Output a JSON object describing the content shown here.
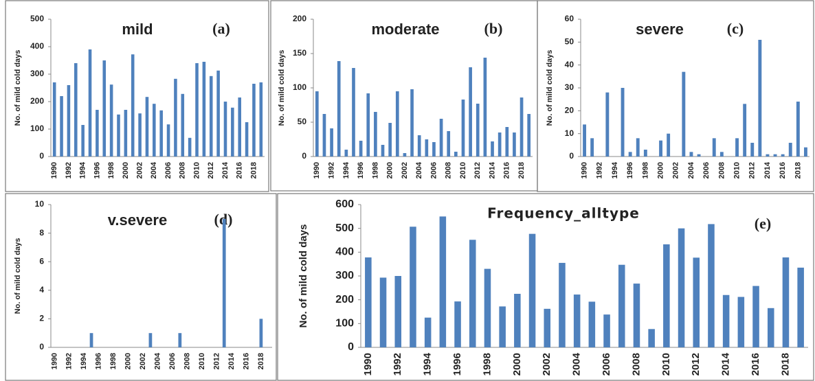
{
  "chart_data": [
    {
      "type": "bar",
      "title": "mild",
      "panel_label": "(a)",
      "y_label": "No. of mild cold days",
      "color": "#4f81bd",
      "categories": [
        "1990",
        null,
        "1992",
        null,
        "1994",
        null,
        "1996",
        null,
        "1998",
        null,
        "2000",
        null,
        "2002",
        null,
        "2004",
        null,
        "2006",
        null,
        "2008",
        null,
        "2010",
        null,
        "2012",
        null,
        "2014",
        null,
        "2016",
        null,
        "2018",
        null
      ],
      "values": [
        270,
        220,
        260,
        340,
        115,
        390,
        170,
        350,
        262,
        153,
        170,
        372,
        157,
        217,
        192,
        168,
        117,
        283,
        228,
        68,
        340,
        345,
        293,
        313,
        200,
        178,
        215,
        125,
        265,
        270
      ],
      "ylim": [
        0,
        500
      ],
      "yticks": [
        0,
        100,
        200,
        300,
        400,
        500
      ]
    },
    {
      "type": "bar",
      "title": "moderate",
      "panel_label": "(b)",
      "y_label": "No. of mild cold days",
      "color": "#4f81bd",
      "categories": [
        "1990",
        null,
        "1992",
        null,
        "1994",
        null,
        "1996",
        null,
        "1998",
        null,
        "2000",
        null,
        "2002",
        null,
        "2004",
        null,
        "2006",
        null,
        "2008",
        null,
        "2010",
        null,
        "2012",
        null,
        "2014",
        null,
        "2016",
        null,
        "2018",
        null
      ],
      "values": [
        95,
        62,
        41,
        139,
        10,
        129,
        23,
        92,
        65,
        17,
        49,
        95,
        5,
        98,
        31,
        25,
        21,
        55,
        37,
        7,
        83,
        130,
        77,
        144,
        22,
        35,
        43,
        35,
        86,
        62
      ],
      "ylim": [
        0,
        200
      ],
      "yticks": [
        0,
        50,
        100,
        150,
        200
      ]
    },
    {
      "type": "bar",
      "title": "severe",
      "panel_label": "(c)",
      "y_label": "No. of mild cold days",
      "color": "#4f81bd",
      "categories": [
        "1990",
        null,
        "1992",
        null,
        "1994",
        null,
        "1996",
        null,
        "1998",
        null,
        "2000",
        null,
        "2002",
        null,
        "2004",
        null,
        "2006",
        null,
        "2008",
        null,
        "2010",
        null,
        "2012",
        null,
        "2014",
        null,
        "2016",
        null,
        "2018",
        null
      ],
      "values": [
        14,
        8,
        0,
        28,
        0,
        30,
        2,
        8,
        3,
        0,
        7,
        10,
        0,
        37,
        2,
        1,
        0,
        8,
        2,
        0,
        8,
        23,
        6,
        51,
        1,
        1,
        1,
        6,
        24,
        4
      ],
      "ylim": [
        0,
        60
      ],
      "yticks": [
        0,
        10,
        20,
        30,
        40,
        50,
        60
      ]
    },
    {
      "type": "bar",
      "title": "v.severe",
      "panel_label": "(d)",
      "y_label": "No. of mild cold days",
      "color": "#4f81bd",
      "categories": [
        "1990",
        null,
        "1992",
        null,
        "1994",
        null,
        "1996",
        null,
        "1998",
        null,
        "2000",
        null,
        "2002",
        null,
        "2004",
        null,
        "2006",
        null,
        "2008",
        null,
        "2010",
        null,
        "2012",
        null,
        "2014",
        null,
        "2016",
        null,
        "2018",
        null
      ],
      "values": [
        0,
        0,
        0,
        0,
        0,
        1,
        0,
        0,
        0,
        0,
        0,
        0,
        0,
        1,
        0,
        0,
        0,
        1,
        0,
        0,
        0,
        0,
        0,
        9,
        0,
        0,
        0,
        0,
        2,
        0
      ],
      "ylim": [
        0,
        10
      ],
      "yticks": [
        0,
        2,
        4,
        6,
        8,
        10
      ]
    },
    {
      "type": "bar",
      "title": "Frequency_alltype",
      "panel_label": "(e)",
      "y_label": "No. of mild cold days",
      "color": "#4f81bd",
      "categories": [
        "1990",
        null,
        "1992",
        null,
        "1994",
        null,
        "1996",
        null,
        "1998",
        null,
        "2000",
        null,
        "2002",
        null,
        "2004",
        null,
        "2006",
        null,
        "2008",
        null,
        "2010",
        null,
        "2012",
        null,
        "2014",
        null,
        "2016",
        null,
        "2018",
        null
      ],
      "values": [
        378,
        293,
        300,
        507,
        125,
        550,
        193,
        452,
        330,
        172,
        225,
        477,
        162,
        355,
        222,
        192,
        138,
        347,
        268,
        77,
        433,
        500,
        377,
        518,
        220,
        212,
        258,
        165,
        378,
        335
      ],
      "ylim": [
        0,
        600
      ],
      "yticks": [
        0,
        100,
        200,
        300,
        400,
        500,
        600
      ]
    }
  ]
}
